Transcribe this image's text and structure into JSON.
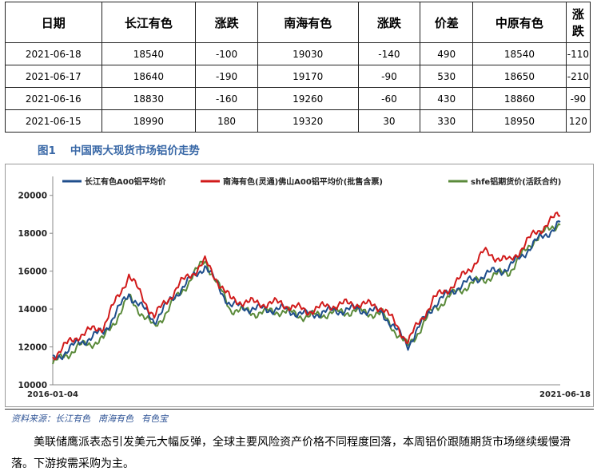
{
  "table": {
    "headers": [
      "日期",
      "长江有色",
      "涨跌",
      "南海有色",
      "涨跌",
      "价差",
      "中原有色",
      "涨跌"
    ],
    "rows": [
      [
        "2021-06-18",
        "18540",
        "-100",
        "19030",
        "-140",
        "490",
        "18540",
        "-110"
      ],
      [
        "2021-06-17",
        "18640",
        "-190",
        "19170",
        "-90",
        "530",
        "18650",
        "-210"
      ],
      [
        "2021-06-16",
        "18830",
        "-160",
        "19260",
        "-60",
        "430",
        "18860",
        "-90"
      ],
      [
        "2021-06-15",
        "18990",
        "180",
        "19320",
        "30",
        "330",
        "18950",
        "120"
      ]
    ]
  },
  "figure": {
    "number": "图1",
    "title": "中国两大现货市场铝价走势"
  },
  "chart_data": {
    "type": "line",
    "title": "中国两大现货市场铝价走势",
    "xlabel": "",
    "ylabel": "",
    "x_start_label": "2016-01-04",
    "x_end_label": "2021-06-18",
    "ylim": [
      10000,
      21000
    ],
    "yticks": [
      10000,
      12000,
      14000,
      16000,
      18000,
      20000
    ],
    "legend_position": "top",
    "colors": {
      "changjiang": "#1f4e8c",
      "nanhai": "#d11a1a",
      "shfe": "#5a8a3a"
    },
    "x": [
      0,
      0.05,
      0.1,
      0.15,
      0.2,
      0.25,
      0.3,
      0.35,
      0.4,
      0.45,
      0.5,
      0.55,
      0.6,
      0.65,
      0.7,
      0.75,
      0.8,
      0.85,
      0.9,
      0.95,
      1.0
    ],
    "series": [
      {
        "name": "长江有色A00铝平均价",
        "key": "changjiang",
        "values": [
          11300,
          12200,
          12800,
          14800,
          13400,
          15000,
          16300,
          14200,
          14000,
          14000,
          13700,
          13900,
          14000,
          13800,
          12100,
          14200,
          15200,
          15800,
          16200,
          17500,
          18540
        ]
      },
      {
        "name": "南海有色(灵通)佛山A00铝平均价(批售含票)",
        "key": "nanhai",
        "values": [
          11500,
          12600,
          13100,
          15800,
          13600,
          15300,
          16500,
          14500,
          14300,
          14300,
          13900,
          14200,
          14300,
          14100,
          12300,
          14500,
          15500,
          17000,
          16500,
          18000,
          19030
        ]
      },
      {
        "name": "shfe铝期货价(活跃合约)",
        "key": "shfe",
        "values": [
          11100,
          12000,
          12400,
          14600,
          13000,
          14800,
          16600,
          14000,
          13800,
          13900,
          13600,
          13800,
          13900,
          13700,
          12000,
          14000,
          15000,
          15600,
          16000,
          17700,
          18600
        ]
      }
    ]
  },
  "source": {
    "label": "资料来源：",
    "items": [
      "长江有色",
      "南海有色",
      "有色宝"
    ]
  },
  "paragraph": "美联储鹰派表态引发美元大幅反弹，全球主要风险资产价格不同程度回落，本周铝价跟随期货市场继续缓慢滑落。下游按需采购为主。"
}
